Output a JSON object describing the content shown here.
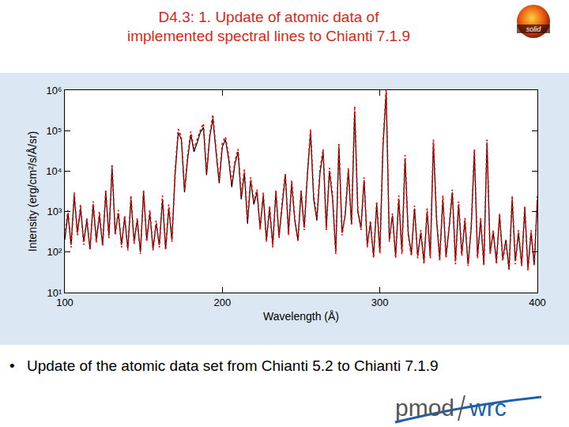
{
  "title": [
    "D4.3: 1. Update of atomic data of",
    "implemented spectral lines to Chianti 7.1.9"
  ],
  "bullets": [
    "Update of the atomic data set from Chianti 5.2 to Chianti 7.1.9"
  ],
  "logos": {
    "top_right": "solid",
    "bottom_right": [
      "pmod",
      "wrc"
    ]
  },
  "chart_data": {
    "type": "line",
    "x_label": "Wavelength (Å)",
    "y_label": "Intensity (erg/cm²/s/Å/sr)",
    "log": "y",
    "grid": false,
    "xlim": [
      100,
      400
    ],
    "xticks": [
      100,
      200,
      300,
      400
    ],
    "ylim": [
      10,
      1000000
    ],
    "yticks": [
      {
        "value": 10,
        "label": "10¹"
      },
      {
        "value": 100,
        "label": "10²"
      },
      {
        "value": 1000,
        "label": "10³"
      },
      {
        "value": 10000,
        "label": "10⁴"
      },
      {
        "value": 100000,
        "label": "10⁵"
      },
      {
        "value": 1000000,
        "label": "10⁶"
      }
    ],
    "x": [
      100,
      102,
      104,
      106,
      108,
      110,
      112,
      114,
      116,
      118,
      120,
      122,
      124,
      126,
      128,
      130,
      132,
      134,
      136,
      138,
      140,
      142,
      144,
      146,
      148,
      150,
      152,
      154,
      156,
      158,
      160,
      162,
      164,
      166,
      168,
      170,
      172,
      174,
      176,
      178,
      180,
      182,
      184,
      186,
      188,
      190,
      192,
      194,
      196,
      198,
      200,
      202,
      204,
      206,
      208,
      210,
      212,
      214,
      216,
      218,
      220,
      222,
      224,
      226,
      228,
      230,
      232,
      234,
      236,
      238,
      240,
      242,
      244,
      246,
      248,
      250,
      252,
      254,
      256,
      258,
      260,
      262,
      264,
      266,
      268,
      270,
      272,
      274,
      276,
      278,
      280,
      282,
      284,
      286,
      288,
      290,
      292,
      294,
      296,
      298,
      300,
      302,
      304,
      306,
      308,
      310,
      312,
      314,
      316,
      318,
      320,
      322,
      324,
      326,
      328,
      330,
      332,
      334,
      336,
      338,
      340,
      342,
      344,
      346,
      348,
      350,
      352,
      354,
      356,
      358,
      360,
      362,
      364,
      366,
      368,
      370,
      372,
      374,
      376,
      378,
      380,
      382,
      384,
      386,
      388,
      390,
      392,
      394,
      396,
      398,
      400
    ],
    "series": [
      {
        "color": "#000000",
        "line_style": "solid",
        "values": [
          200,
          900,
          150,
          2500,
          300,
          1200,
          180,
          600,
          120,
          1500,
          200,
          800,
          150,
          3000,
          250,
          12000,
          300,
          900,
          150,
          700,
          120,
          2000,
          180,
          600,
          100,
          3000,
          200,
          900,
          120,
          500,
          150,
          2000,
          120,
          1200,
          200,
          8000,
          90000,
          60000,
          3000,
          20000,
          80000,
          30000,
          50000,
          90000,
          120000,
          8000,
          70000,
          200000,
          30000,
          5000,
          40000,
          60000,
          20000,
          4000,
          15000,
          30000,
          2000,
          9000,
          500,
          6000,
          1500,
          3000,
          400,
          2500,
          200,
          1200,
          150,
          3000,
          250,
          1500,
          8000,
          300,
          5000,
          600,
          200,
          3000,
          400,
          8000,
          90000,
          2000,
          600,
          9000,
          30000,
          400,
          10000,
          2000,
          100,
          40000,
          300,
          800,
          10000,
          500,
          300000,
          1000,
          400,
          6000,
          150,
          500,
          80,
          1500,
          100,
          40000,
          900000,
          200,
          800,
          80,
          2000,
          100,
          20000,
          300,
          90,
          1200,
          80,
          300,
          60,
          1000,
          80,
          50000,
          600,
          70,
          2000,
          80,
          400,
          3000,
          60,
          1500,
          90,
          600,
          50,
          400,
          30000,
          80,
          600,
          50,
          50000,
          100,
          300,
          60,
          800,
          70,
          200,
          40,
          2000,
          60,
          300,
          50,
          1200,
          40,
          300,
          50,
          2000
        ]
      },
      {
        "color": "#ff0000",
        "line_style": "dotted",
        "values": [
          260,
          1100,
          130,
          3000,
          260,
          1500,
          150,
          700,
          110,
          1800,
          170,
          1000,
          140,
          3500,
          220,
          15000,
          260,
          1100,
          130,
          800,
          110,
          2500,
          160,
          700,
          90,
          3500,
          180,
          1100,
          110,
          600,
          130,
          2500,
          110,
          1500,
          180,
          10000,
          110000,
          70000,
          3500,
          25000,
          95000,
          35000,
          60000,
          100000,
          150000,
          9000,
          80000,
          250000,
          35000,
          6000,
          50000,
          70000,
          25000,
          5000,
          18000,
          35000,
          2500,
          11000,
          600,
          7000,
          1800,
          3500,
          350,
          3000,
          180,
          1400,
          130,
          3500,
          220,
          1800,
          9000,
          260,
          6000,
          700,
          180,
          3500,
          350,
          9000,
          110000,
          2500,
          700,
          11000,
          35000,
          350,
          12000,
          2500,
          90,
          50000,
          260,
          900,
          12000,
          450,
          400000,
          1200,
          350,
          7000,
          130,
          600,
          70,
          1800,
          90,
          50000,
          1000000,
          180,
          900,
          70,
          2500,
          90,
          25000,
          260,
          80,
          1400,
          70,
          350,
          50,
          1200,
          70,
          60000,
          700,
          60,
          2500,
          70,
          450,
          3500,
          50,
          1800,
          80,
          700,
          45,
          450,
          35000,
          70,
          700,
          45,
          60000,
          90,
          350,
          50,
          900,
          60,
          180,
          35,
          2500,
          50,
          350,
          45,
          1400,
          35,
          350,
          45,
          2500
        ]
      }
    ]
  }
}
